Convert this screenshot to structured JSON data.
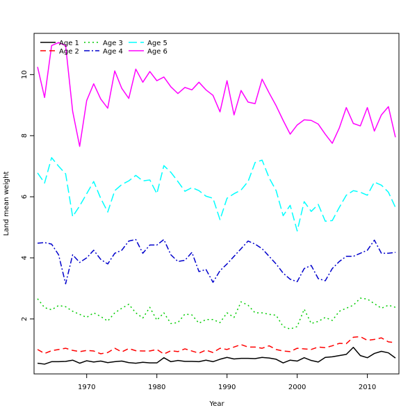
{
  "chart_data": {
    "type": "line",
    "title": "",
    "xlabel": "Year",
    "ylabel": "Land mean weight",
    "xlim": [
      1962.5,
      2014.5
    ],
    "ylim": [
      0.2,
      11.35
    ],
    "xticks": [
      1970,
      1980,
      1990,
      2000,
      2010
    ],
    "yticks": [
      2,
      4,
      6,
      8,
      10
    ],
    "grid": false,
    "legend_position": "top-left",
    "x": [
      1963,
      1964,
      1965,
      1966,
      1967,
      1968,
      1969,
      1970,
      1971,
      1972,
      1973,
      1974,
      1975,
      1976,
      1977,
      1978,
      1979,
      1980,
      1981,
      1982,
      1983,
      1984,
      1985,
      1986,
      1987,
      1988,
      1989,
      1990,
      1991,
      1992,
      1993,
      1994,
      1995,
      1996,
      1997,
      1998,
      1999,
      2000,
      2001,
      2002,
      2003,
      2004,
      2005,
      2006,
      2007,
      2008,
      2009,
      2010,
      2011,
      2012,
      2013,
      2014
    ],
    "series": [
      {
        "name": "Age 1",
        "color": "#000000",
        "dash": "solid",
        "values": [
          0.55,
          0.52,
          0.6,
          0.6,
          0.61,
          0.65,
          0.55,
          0.63,
          0.59,
          0.62,
          0.57,
          0.6,
          0.62,
          0.57,
          0.55,
          0.58,
          0.56,
          0.56,
          0.73,
          0.6,
          0.64,
          0.61,
          0.61,
          0.6,
          0.65,
          0.6,
          0.68,
          0.74,
          0.69,
          0.71,
          0.71,
          0.7,
          0.74,
          0.72,
          0.68,
          0.56,
          0.65,
          0.62,
          0.73,
          0.64,
          0.59,
          0.74,
          0.76,
          0.8,
          0.84,
          1.07,
          0.8,
          0.73,
          0.87,
          0.94,
          0.89,
          0.72
        ]
      },
      {
        "name": "Age 2",
        "color": "#ff0000",
        "dash": "8,5",
        "values": [
          1.0,
          0.87,
          0.96,
          1.0,
          1.04,
          0.97,
          0.93,
          0.97,
          0.95,
          0.86,
          0.9,
          1.04,
          0.92,
          1.03,
          0.96,
          0.95,
          0.95,
          1.0,
          0.85,
          0.96,
          0.93,
          1.02,
          0.95,
          0.88,
          0.98,
          0.9,
          1.04,
          1.0,
          1.08,
          1.16,
          1.08,
          1.08,
          1.04,
          1.12,
          1.0,
          0.95,
          0.93,
          1.04,
          1.02,
          1.0,
          1.08,
          1.06,
          1.12,
          1.2,
          1.19,
          1.4,
          1.42,
          1.3,
          1.33,
          1.38,
          1.25,
          1.22
        ]
      },
      {
        "name": "Age 3",
        "color": "#00cc00",
        "dash": "2,4",
        "values": [
          2.66,
          2.37,
          2.3,
          2.44,
          2.4,
          2.25,
          2.15,
          2.05,
          2.2,
          2.08,
          1.93,
          2.2,
          2.35,
          2.48,
          2.2,
          2.03,
          2.38,
          1.96,
          2.2,
          1.85,
          1.88,
          2.16,
          2.13,
          1.86,
          1.98,
          1.98,
          1.88,
          2.2,
          2.05,
          2.56,
          2.45,
          2.2,
          2.2,
          2.15,
          2.12,
          1.75,
          1.67,
          1.75,
          2.32,
          1.85,
          1.92,
          2.05,
          1.95,
          2.25,
          2.35,
          2.45,
          2.68,
          2.65,
          2.5,
          2.35,
          2.45,
          2.38
        ]
      },
      {
        "name": "Age 4",
        "color": "#0000cc",
        "dash": "8,3,2,3",
        "values": [
          4.48,
          4.5,
          4.45,
          4.1,
          3.15,
          4.1,
          3.85,
          4.0,
          4.25,
          3.95,
          3.8,
          4.15,
          4.25,
          4.55,
          4.6,
          4.15,
          4.42,
          4.42,
          4.6,
          4.1,
          3.88,
          3.92,
          4.18,
          3.55,
          3.62,
          3.2,
          3.58,
          3.8,
          4.05,
          4.3,
          4.55,
          4.45,
          4.3,
          4.05,
          3.8,
          3.5,
          3.3,
          3.22,
          3.65,
          3.75,
          3.32,
          3.25,
          3.65,
          3.88,
          4.05,
          4.05,
          4.15,
          4.25,
          4.58,
          4.15,
          4.15,
          4.18
        ]
      },
      {
        "name": "Age 5",
        "color": "#00ffff",
        "dash": "12,5",
        "values": [
          6.78,
          6.45,
          7.28,
          7.0,
          6.75,
          5.35,
          5.7,
          6.1,
          6.5,
          5.95,
          5.5,
          6.2,
          6.4,
          6.52,
          6.7,
          6.52,
          6.55,
          6.1,
          7.02,
          6.8,
          6.5,
          6.18,
          6.3,
          6.2,
          6.02,
          5.95,
          5.25,
          5.95,
          6.1,
          6.22,
          6.5,
          7.12,
          7.2,
          6.62,
          6.2,
          5.38,
          5.72,
          4.88,
          5.84,
          5.52,
          5.75,
          5.2,
          5.22,
          5.65,
          6.05,
          6.2,
          6.15,
          6.05,
          6.48,
          6.38,
          6.15,
          5.65
        ]
      },
      {
        "name": "Age 6",
        "color": "#ff00ff",
        "dash": "solid",
        "values": [
          10.25,
          9.25,
          10.95,
          11.05,
          10.95,
          8.8,
          7.65,
          9.15,
          9.7,
          9.2,
          8.9,
          10.12,
          9.55,
          9.22,
          10.18,
          9.75,
          10.1,
          9.8,
          9.92,
          9.6,
          9.38,
          9.58,
          9.5,
          9.75,
          9.5,
          9.32,
          8.78,
          9.8,
          8.68,
          9.48,
          9.1,
          9.05,
          9.85,
          9.4,
          8.98,
          8.5,
          8.05,
          8.35,
          8.52,
          8.5,
          8.38,
          8.05,
          7.75,
          8.25,
          8.92,
          8.4,
          8.32,
          8.92,
          8.15,
          8.68,
          8.95,
          7.95
        ]
      }
    ]
  }
}
